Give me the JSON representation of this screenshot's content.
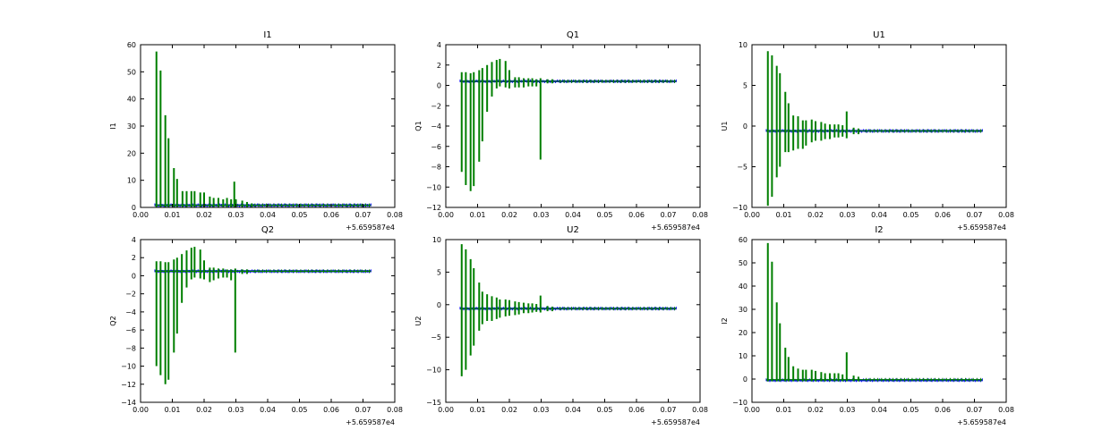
{
  "figure": {
    "background": "#ffffff",
    "grid": false
  },
  "chart_data": [
    {
      "type": "line",
      "title": "I1",
      "ylabel": "I1",
      "x_offset_label": "+5.659587e4",
      "xlim": [
        0,
        0.08
      ],
      "ylim": [
        0,
        60
      ],
      "xticks": [
        "0.00",
        "0.01",
        "0.02",
        "0.03",
        "0.04",
        "0.05",
        "0.06",
        "0.07",
        "0.08"
      ],
      "yticks": [
        "0",
        "10",
        "20",
        "30",
        "40",
        "50",
        "60"
      ],
      "x_range": [
        0.0045,
        0.0725
      ],
      "blue_level": 0.8,
      "green_level": 0.8,
      "green_spikes": [
        {
          "x": 0.005,
          "lo": 0,
          "hi": 57.5
        },
        {
          "x": 0.0063,
          "lo": 0,
          "hi": 50.5
        },
        {
          "x": 0.0078,
          "lo": 0,
          "hi": 34
        },
        {
          "x": 0.0088,
          "lo": 0,
          "hi": 25.5
        },
        {
          "x": 0.0105,
          "lo": 0,
          "hi": 14.5
        },
        {
          "x": 0.0115,
          "lo": 0,
          "hi": 10.5
        },
        {
          "x": 0.0132,
          "lo": 0,
          "hi": 6
        },
        {
          "x": 0.0145,
          "lo": 0,
          "hi": 6
        },
        {
          "x": 0.016,
          "lo": 0,
          "hi": 6
        },
        {
          "x": 0.017,
          "lo": 0,
          "hi": 6
        },
        {
          "x": 0.0188,
          "lo": 0,
          "hi": 5.5
        },
        {
          "x": 0.02,
          "lo": 0,
          "hi": 5.5
        },
        {
          "x": 0.0218,
          "lo": 0,
          "hi": 4
        },
        {
          "x": 0.023,
          "lo": 0,
          "hi": 3.5
        },
        {
          "x": 0.0245,
          "lo": 0,
          "hi": 3.5
        },
        {
          "x": 0.026,
          "lo": 0,
          "hi": 3
        },
        {
          "x": 0.0272,
          "lo": 0,
          "hi": 3.5
        },
        {
          "x": 0.0285,
          "lo": 0,
          "hi": 3
        },
        {
          "x": 0.0295,
          "lo": 0,
          "hi": 9.5
        },
        {
          "x": 0.03,
          "lo": 0,
          "hi": 3
        },
        {
          "x": 0.032,
          "lo": 0,
          "hi": 2.5
        },
        {
          "x": 0.0335,
          "lo": 0,
          "hi": 2
        },
        {
          "x": 0.035,
          "lo": 0,
          "hi": 1.5
        }
      ]
    },
    {
      "type": "line",
      "title": "Q1",
      "ylabel": "Q1",
      "x_offset_label": "+5.659587e4",
      "xlim": [
        0,
        0.08
      ],
      "ylim": [
        -12,
        4
      ],
      "xticks": [
        "0.00",
        "0.01",
        "0.02",
        "0.03",
        "0.04",
        "0.05",
        "0.06",
        "0.07",
        "0.08"
      ],
      "yticks": [
        "−12",
        "−10",
        "−8",
        "−6",
        "−4",
        "−2",
        "0",
        "2",
        "4"
      ],
      "x_range": [
        0.0045,
        0.0725
      ],
      "blue_level": 0.4,
      "green_level": 0.4,
      "green_spikes": [
        {
          "x": 0.005,
          "lo": -8.5,
          "hi": 1.3
        },
        {
          "x": 0.0063,
          "lo": -9.8,
          "hi": 1.3
        },
        {
          "x": 0.0078,
          "lo": -10.4,
          "hi": 1.2
        },
        {
          "x": 0.0088,
          "lo": -9.9,
          "hi": 1.3
        },
        {
          "x": 0.0105,
          "lo": -7.5,
          "hi": 1.5
        },
        {
          "x": 0.0115,
          "lo": -5.5,
          "hi": 1.7
        },
        {
          "x": 0.013,
          "lo": -2.6,
          "hi": 2
        },
        {
          "x": 0.0145,
          "lo": -1.1,
          "hi": 2.3
        },
        {
          "x": 0.016,
          "lo": -0.3,
          "hi": 2.5
        },
        {
          "x": 0.017,
          "lo": -0.1,
          "hi": 2.6
        },
        {
          "x": 0.0188,
          "lo": -0.2,
          "hi": 2.4
        },
        {
          "x": 0.02,
          "lo": -0.3,
          "hi": 1.5
        },
        {
          "x": 0.0218,
          "lo": -0.2,
          "hi": 0.8
        },
        {
          "x": 0.023,
          "lo": -0.2,
          "hi": 0.8
        },
        {
          "x": 0.0245,
          "lo": -0.2,
          "hi": 0.7
        },
        {
          "x": 0.026,
          "lo": -0.1,
          "hi": 0.7
        },
        {
          "x": 0.0272,
          "lo": -0.1,
          "hi": 0.7
        },
        {
          "x": 0.0285,
          "lo": -0.1,
          "hi": 0.6
        },
        {
          "x": 0.0298,
          "lo": -7.3,
          "hi": 0.7
        },
        {
          "x": 0.032,
          "lo": 0.2,
          "hi": 0.6
        },
        {
          "x": 0.0335,
          "lo": 0.2,
          "hi": 0.6
        }
      ]
    },
    {
      "type": "line",
      "title": "U1",
      "ylabel": "U1",
      "x_offset_label": "+5.659587e4",
      "xlim": [
        0,
        0.08
      ],
      "ylim": [
        -10,
        10
      ],
      "xticks": [
        "0.00",
        "0.01",
        "0.02",
        "0.03",
        "0.04",
        "0.05",
        "0.06",
        "0.07",
        "0.08"
      ],
      "yticks": [
        "−10",
        "−5",
        "0",
        "5",
        "10"
      ],
      "x_range": [
        0.0045,
        0.0725
      ],
      "blue_level": -0.6,
      "green_level": -0.6,
      "green_spikes": [
        {
          "x": 0.005,
          "lo": -9.8,
          "hi": 9.2
        },
        {
          "x": 0.0063,
          "lo": -8.7,
          "hi": 8.7
        },
        {
          "x": 0.0078,
          "lo": -6.3,
          "hi": 7.4
        },
        {
          "x": 0.0088,
          "lo": -5,
          "hi": 6.5
        },
        {
          "x": 0.0105,
          "lo": -3.2,
          "hi": 4.2
        },
        {
          "x": 0.0115,
          "lo": -3.2,
          "hi": 2.8
        },
        {
          "x": 0.013,
          "lo": -3,
          "hi": 1.3
        },
        {
          "x": 0.0145,
          "lo": -2.8,
          "hi": 1.2
        },
        {
          "x": 0.016,
          "lo": -2.8,
          "hi": 0.7
        },
        {
          "x": 0.017,
          "lo": -2.4,
          "hi": 0.7
        },
        {
          "x": 0.0188,
          "lo": -2,
          "hi": 0.8
        },
        {
          "x": 0.02,
          "lo": -1.8,
          "hi": 0.6
        },
        {
          "x": 0.0218,
          "lo": -1.8,
          "hi": 0.5
        },
        {
          "x": 0.023,
          "lo": -1.6,
          "hi": 0.3
        },
        {
          "x": 0.0245,
          "lo": -1.6,
          "hi": 0.2
        },
        {
          "x": 0.026,
          "lo": -1.4,
          "hi": 0.2
        },
        {
          "x": 0.0272,
          "lo": -1.4,
          "hi": 0.2
        },
        {
          "x": 0.0285,
          "lo": -1.3,
          "hi": 0.1
        },
        {
          "x": 0.0298,
          "lo": -1.5,
          "hi": 1.8
        },
        {
          "x": 0.032,
          "lo": -1,
          "hi": -0.2
        },
        {
          "x": 0.0335,
          "lo": -1,
          "hi": -0.3
        }
      ]
    },
    {
      "type": "line",
      "title": "Q2",
      "ylabel": "Q2",
      "x_offset_label": "+5.659587e4",
      "xlim": [
        0,
        0.08
      ],
      "ylim": [
        -14,
        4
      ],
      "xticks": [
        "0.00",
        "0.01",
        "0.02",
        "0.03",
        "0.04",
        "0.05",
        "0.06",
        "0.07",
        "0.08"
      ],
      "yticks": [
        "−14",
        "−12",
        "−10",
        "−8",
        "−6",
        "−4",
        "−2",
        "0",
        "2",
        "4"
      ],
      "x_range": [
        0.0045,
        0.0725
      ],
      "blue_level": 0.5,
      "green_level": 0.5,
      "green_spikes": [
        {
          "x": 0.005,
          "lo": -10,
          "hi": 1.6
        },
        {
          "x": 0.0063,
          "lo": -11,
          "hi": 1.6
        },
        {
          "x": 0.0078,
          "lo": -12,
          "hi": 1.5
        },
        {
          "x": 0.0088,
          "lo": -11.5,
          "hi": 1.5
        },
        {
          "x": 0.0105,
          "lo": -8.5,
          "hi": 1.8
        },
        {
          "x": 0.0115,
          "lo": -6.4,
          "hi": 2
        },
        {
          "x": 0.013,
          "lo": -3,
          "hi": 2.4
        },
        {
          "x": 0.0145,
          "lo": -1.3,
          "hi": 2.8
        },
        {
          "x": 0.016,
          "lo": -0.4,
          "hi": 3.1
        },
        {
          "x": 0.017,
          "lo": -0.2,
          "hi": 3.2
        },
        {
          "x": 0.0188,
          "lo": -0.3,
          "hi": 2.9
        },
        {
          "x": 0.02,
          "lo": -0.4,
          "hi": 1.7
        },
        {
          "x": 0.0218,
          "lo": -0.7,
          "hi": 0.9
        },
        {
          "x": 0.023,
          "lo": -0.5,
          "hi": 0.9
        },
        {
          "x": 0.0245,
          "lo": -0.3,
          "hi": 0.8
        },
        {
          "x": 0.026,
          "lo": -0.2,
          "hi": 0.8
        },
        {
          "x": 0.0272,
          "lo": -0.2,
          "hi": 0.7
        },
        {
          "x": 0.0285,
          "lo": -0.5,
          "hi": 0.7
        },
        {
          "x": 0.0298,
          "lo": -8.5,
          "hi": 0.8
        },
        {
          "x": 0.032,
          "lo": 0.2,
          "hi": 0.7
        },
        {
          "x": 0.0335,
          "lo": 0.2,
          "hi": 0.7
        }
      ]
    },
    {
      "type": "line",
      "title": "U2",
      "ylabel": "U2",
      "x_offset_label": "+5.659587e4",
      "xlim": [
        0,
        0.08
      ],
      "ylim": [
        -15,
        10
      ],
      "xticks": [
        "0.00",
        "0.01",
        "0.02",
        "0.03",
        "0.04",
        "0.05",
        "0.06",
        "0.07",
        "0.08"
      ],
      "yticks": [
        "−15",
        "−10",
        "−5",
        "0",
        "5",
        "10"
      ],
      "x_range": [
        0.0045,
        0.0725
      ],
      "blue_level": -0.6,
      "green_level": -0.6,
      "green_spikes": [
        {
          "x": 0.005,
          "lo": -11,
          "hi": 9.3
        },
        {
          "x": 0.0063,
          "lo": -10,
          "hi": 8.5
        },
        {
          "x": 0.0078,
          "lo": -7.8,
          "hi": 7
        },
        {
          "x": 0.0088,
          "lo": -6.3,
          "hi": 5.6
        },
        {
          "x": 0.0105,
          "lo": -4,
          "hi": 3.4
        },
        {
          "x": 0.0115,
          "lo": -3,
          "hi": 2
        },
        {
          "x": 0.013,
          "lo": -2.5,
          "hi": 1.6
        },
        {
          "x": 0.0145,
          "lo": -2.5,
          "hi": 1.3
        },
        {
          "x": 0.016,
          "lo": -2.2,
          "hi": 1.1
        },
        {
          "x": 0.017,
          "lo": -2,
          "hi": 0.8
        },
        {
          "x": 0.0188,
          "lo": -1.8,
          "hi": 0.8
        },
        {
          "x": 0.02,
          "lo": -1.7,
          "hi": 0.7
        },
        {
          "x": 0.0218,
          "lo": -1.6,
          "hi": 0.5
        },
        {
          "x": 0.023,
          "lo": -1.5,
          "hi": 0.4
        },
        {
          "x": 0.0245,
          "lo": -1.3,
          "hi": 0.3
        },
        {
          "x": 0.026,
          "lo": -1.3,
          "hi": 0.2
        },
        {
          "x": 0.0272,
          "lo": -1.2,
          "hi": 0.2
        },
        {
          "x": 0.0285,
          "lo": -1.1,
          "hi": 0.1
        },
        {
          "x": 0.0298,
          "lo": -1.2,
          "hi": 1.4
        },
        {
          "x": 0.032,
          "lo": -1,
          "hi": -0.2
        },
        {
          "x": 0.0335,
          "lo": -1,
          "hi": -0.3
        }
      ]
    },
    {
      "type": "line",
      "title": "I2",
      "ylabel": "I2",
      "x_offset_label": "+5.659587e4",
      "xlim": [
        0,
        0.08
      ],
      "ylim": [
        -10,
        60
      ],
      "xticks": [
        "0.00",
        "0.01",
        "0.02",
        "0.03",
        "0.04",
        "0.05",
        "0.06",
        "0.07",
        "0.08"
      ],
      "yticks": [
        "−10",
        "0",
        "10",
        "20",
        "30",
        "40",
        "50",
        "60"
      ],
      "x_range": [
        0.0045,
        0.0725
      ],
      "blue_level": -0.5,
      "green_level": -0.3,
      "green_spikes": [
        {
          "x": 0.005,
          "lo": -1,
          "hi": 58.5
        },
        {
          "x": 0.0063,
          "lo": -1,
          "hi": 50.5
        },
        {
          "x": 0.0078,
          "lo": -1,
          "hi": 33
        },
        {
          "x": 0.0088,
          "lo": -1,
          "hi": 24
        },
        {
          "x": 0.0105,
          "lo": -1,
          "hi": 13.5
        },
        {
          "x": 0.0115,
          "lo": -1,
          "hi": 9.5
        },
        {
          "x": 0.013,
          "lo": -1,
          "hi": 5.5
        },
        {
          "x": 0.0145,
          "lo": -1,
          "hi": 4.5
        },
        {
          "x": 0.016,
          "lo": -1,
          "hi": 4
        },
        {
          "x": 0.017,
          "lo": -1,
          "hi": 4
        },
        {
          "x": 0.0188,
          "lo": -1,
          "hi": 4
        },
        {
          "x": 0.02,
          "lo": -1,
          "hi": 3.5
        },
        {
          "x": 0.0218,
          "lo": -1,
          "hi": 3
        },
        {
          "x": 0.023,
          "lo": -1,
          "hi": 2.5
        },
        {
          "x": 0.0245,
          "lo": -1,
          "hi": 2.5
        },
        {
          "x": 0.026,
          "lo": -1,
          "hi": 2.5
        },
        {
          "x": 0.0272,
          "lo": -1,
          "hi": 2.5
        },
        {
          "x": 0.0285,
          "lo": -1,
          "hi": 2
        },
        {
          "x": 0.0298,
          "lo": -1,
          "hi": 11.5
        },
        {
          "x": 0.032,
          "lo": -1,
          "hi": 1.5
        },
        {
          "x": 0.0335,
          "lo": -1,
          "hi": 1
        }
      ]
    }
  ],
  "colors": {
    "green": "#007f00",
    "blue": "#0000ff",
    "axis": "#000000"
  }
}
